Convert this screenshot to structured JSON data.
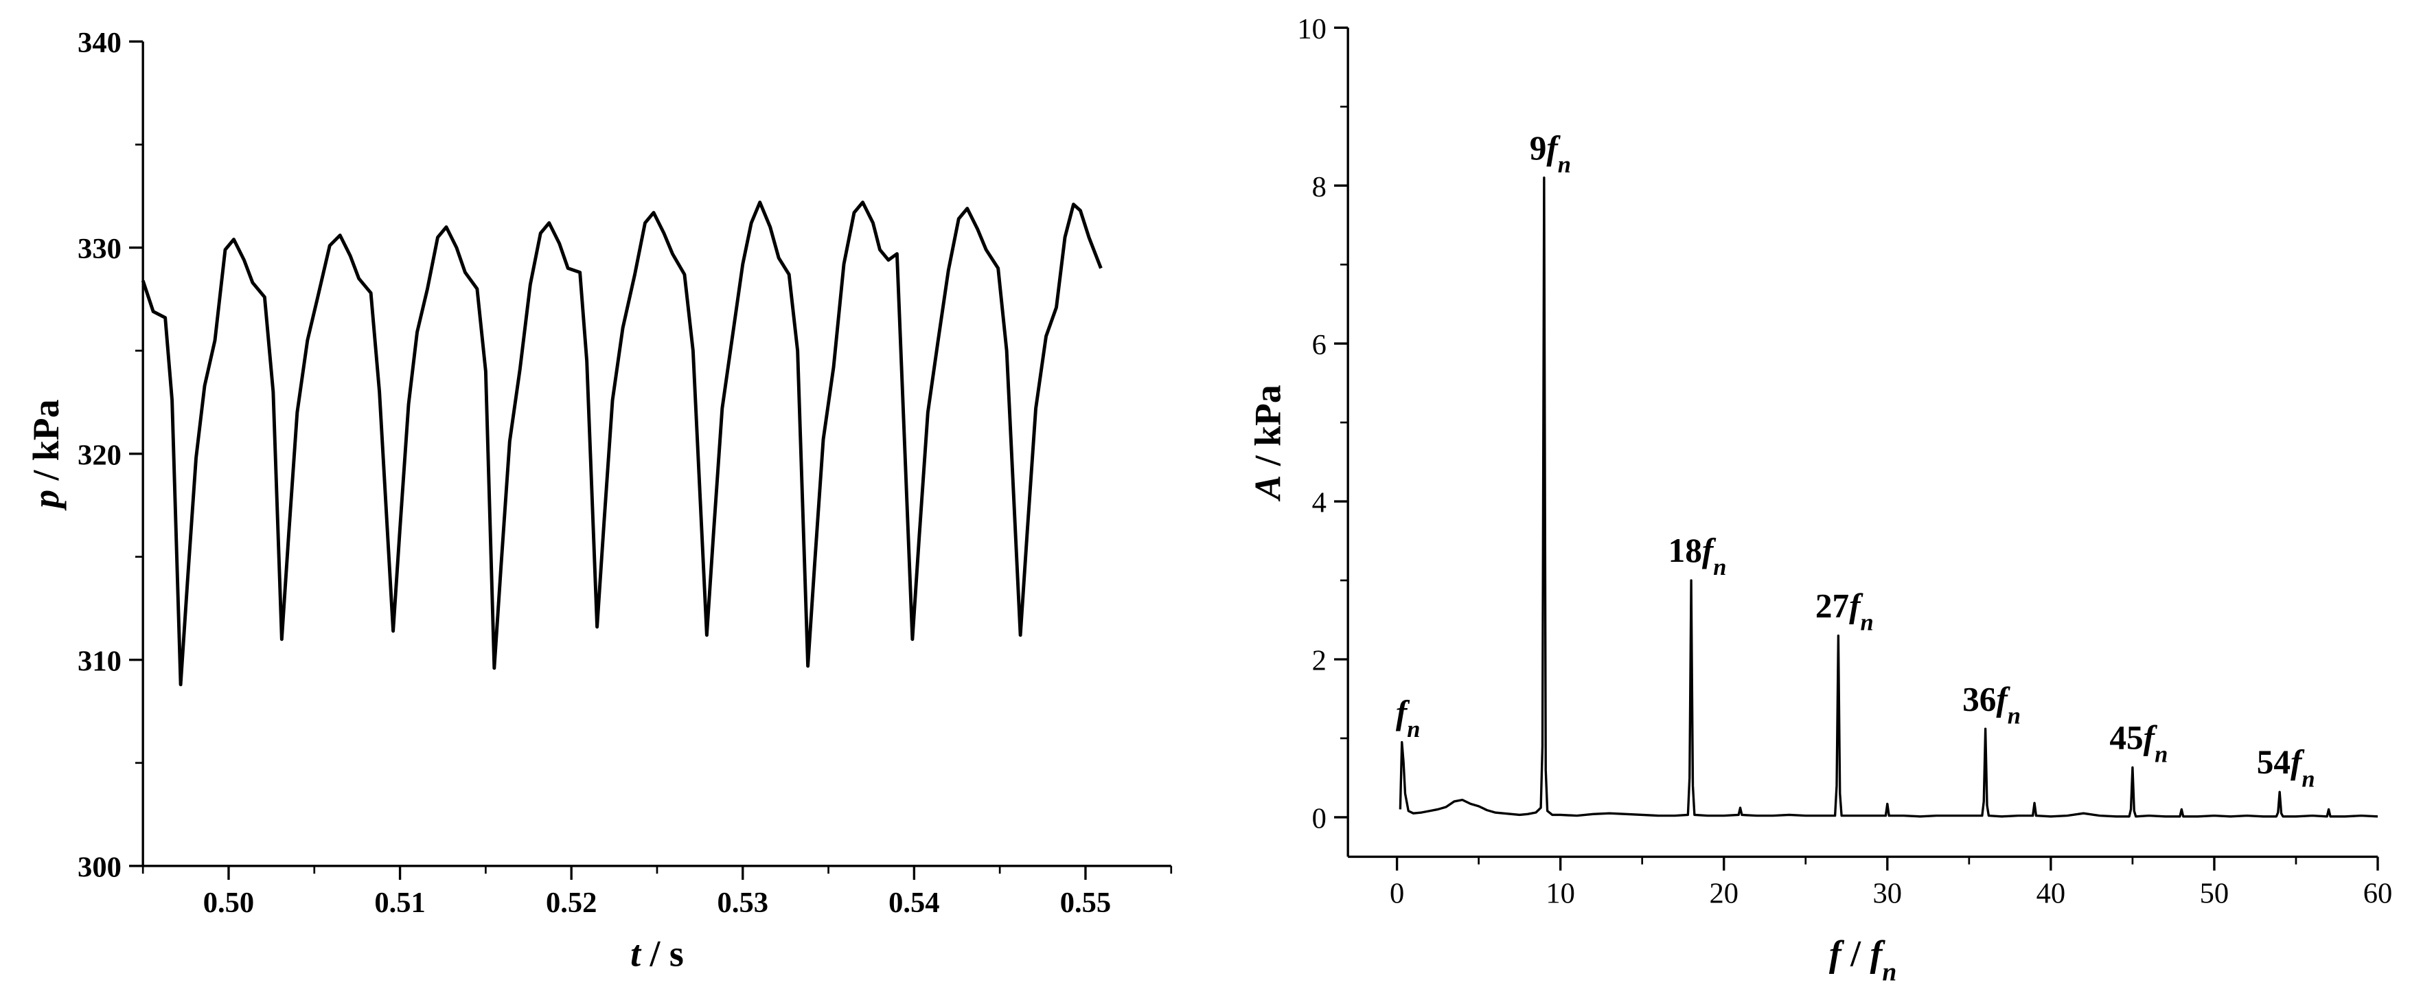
{
  "chart_data": [
    {
      "type": "line",
      "xlabel": [
        {
          "text": "t",
          "style": "italic"
        },
        {
          "text": "/"
        },
        {
          "text": "s"
        }
      ],
      "ylabel": [
        {
          "text": "p",
          "style": "italic"
        },
        {
          "text": "/"
        },
        {
          "text": "kPa"
        }
      ],
      "xlim": [
        0.495,
        0.555
      ],
      "xticks": [
        {
          "value": 0.5,
          "label": "0.50"
        },
        0.51,
        0.52,
        0.53,
        0.54,
        0.55
      ],
      "xminor": [
        0.495,
        0.505,
        0.515,
        0.525,
        0.535,
        0.545,
        0.555
      ],
      "ylim": [
        300,
        340
      ],
      "yticks": [
        300,
        310,
        320,
        330,
        340
      ],
      "yminor": [
        305,
        315,
        325,
        335
      ],
      "bold_ticks": true,
      "series": [
        {
          "color": "#000000",
          "x": [
            0.495,
            0.4956,
            0.4963,
            0.4967,
            0.4972,
            0.4976,
            0.4981,
            0.4986,
            0.4992,
            0.4998,
            0.5003,
            0.5009,
            0.5014,
            0.5021,
            0.5026,
            0.5031,
            0.5035,
            0.504,
            0.5046,
            0.5052,
            0.5059,
            0.5065,
            0.5071,
            0.5076,
            0.5083,
            0.5088,
            0.5096,
            0.51,
            0.5105,
            0.511,
            0.5116,
            0.5122,
            0.5127,
            0.5133,
            0.5138,
            0.5145,
            0.515,
            0.5155,
            0.5159,
            0.5164,
            0.517,
            0.5176,
            0.5182,
            0.5187,
            0.5193,
            0.5198,
            0.5205,
            0.5209,
            0.5215,
            0.5219,
            0.5224,
            0.523,
            0.5237,
            0.5243,
            0.5248,
            0.5254,
            0.5259,
            0.5266,
            0.5271,
            0.5279,
            0.5283,
            0.5288,
            0.5294,
            0.53,
            0.5305,
            0.531,
            0.5316,
            0.5321,
            0.5327,
            0.5332,
            0.5338,
            0.5342,
            0.5347,
            0.5353,
            0.5359,
            0.5365,
            0.537,
            0.5376,
            0.538,
            0.5385,
            0.539,
            0.5399,
            0.5403,
            0.5408,
            0.5414,
            0.542,
            0.5426,
            0.5431,
            0.5437,
            0.5442,
            0.5449,
            0.5454,
            0.5462,
            0.5466,
            0.5471,
            0.5477,
            0.5483,
            0.5488,
            0.5493,
            0.5497,
            0.5502,
            0.5509
          ],
          "values": [
            328.4,
            326.9,
            326.6,
            322.6,
            308.8,
            313.8,
            319.8,
            323.3,
            325.5,
            329.9,
            330.4,
            329.4,
            328.3,
            327.6,
            323.0,
            311.0,
            316,
            322,
            325.5,
            327.6,
            330.1,
            330.6,
            329.6,
            328.5,
            327.8,
            323,
            311.4,
            316.4,
            322.4,
            325.9,
            328,
            330.5,
            331.0,
            330,
            328.8,
            328,
            324,
            309.6,
            314.6,
            320.6,
            324.1,
            328.2,
            330.7,
            331.2,
            330.2,
            329,
            328.8,
            324.5,
            311.6,
            316.6,
            322.6,
            326.1,
            328.7,
            331.2,
            331.7,
            330.7,
            329.7,
            328.7,
            325,
            311.2,
            316.2,
            322.2,
            325.7,
            329.2,
            331.2,
            332.2,
            331,
            329.5,
            328.7,
            325,
            309.7,
            314.7,
            320.7,
            324.2,
            329.2,
            331.7,
            332.2,
            331.2,
            329.9,
            329.4,
            329.7,
            311.0,
            316,
            322,
            325.5,
            328.9,
            331.4,
            331.9,
            330.9,
            329.9,
            329,
            325,
            311.2,
            316.2,
            322.2,
            325.7,
            327.1,
            330.5,
            332.1,
            331.8,
            330.5,
            329.0
          ]
        }
      ]
    },
    {
      "type": "line",
      "xlabel": [
        {
          "text": "f",
          "style": "italic"
        },
        {
          "text": "/"
        },
        {
          "text": "f",
          "style": "italic"
        },
        {
          "text": "n",
          "style": "sub"
        }
      ],
      "ylabel": [
        {
          "text": "A",
          "style": "italic"
        },
        {
          "text": "/"
        },
        {
          "text": "kPa"
        }
      ],
      "xlim": [
        -3,
        60
      ],
      "xticks": [
        0,
        10,
        20,
        30,
        40,
        50,
        60
      ],
      "xminor": [
        5,
        15,
        25,
        35,
        45,
        55
      ],
      "ylim": [
        -0.5,
        10
      ],
      "yticks": [
        0,
        2,
        4,
        6,
        8,
        10
      ],
      "yminor": [
        1,
        3,
        5,
        7,
        9
      ],
      "bold_ticks": false,
      "series": [
        {
          "color": "#000000",
          "x": [
            0.2,
            0.3,
            0.4,
            0.5,
            0.7,
            1,
            1.5,
            2,
            2.5,
            3,
            3.5,
            4,
            4.5,
            5,
            5.5,
            6,
            6.5,
            7,
            7.5,
            8,
            8.5,
            8.8,
            8.9,
            9,
            9.1,
            9.2,
            9.5,
            10,
            11,
            12,
            13,
            14,
            15,
            16,
            17,
            17.8,
            17.9,
            18,
            18.1,
            18.2,
            19,
            20,
            20.9,
            21,
            21.1,
            22,
            23,
            24,
            25,
            26,
            26.8,
            26.9,
            27,
            27.1,
            27.2,
            28,
            29,
            29.9,
            30,
            30.1,
            31,
            32,
            33,
            34,
            35,
            35.8,
            35.9,
            36,
            36.1,
            36.2,
            37,
            38,
            38.9,
            39,
            39.1,
            40,
            41,
            42,
            43,
            44,
            44.8,
            44.9,
            45,
            45.1,
            45.2,
            46,
            47,
            47.9,
            48,
            48.1,
            49,
            50,
            51,
            52,
            53,
            53.8,
            53.9,
            54,
            54.1,
            54.2,
            55,
            56,
            56.9,
            57,
            57.1,
            58,
            59,
            60
          ],
          "values": [
            0.1,
            0.95,
            0.7,
            0.3,
            0.08,
            0.05,
            0.06,
            0.08,
            0.1,
            0.13,
            0.2,
            0.22,
            0.17,
            0.14,
            0.09,
            0.06,
            0.05,
            0.04,
            0.03,
            0.04,
            0.06,
            0.12,
            0.9,
            8.1,
            0.6,
            0.08,
            0.03,
            0.03,
            0.02,
            0.04,
            0.05,
            0.04,
            0.03,
            0.02,
            0.02,
            0.03,
            0.5,
            3.0,
            0.4,
            0.03,
            0.02,
            0.02,
            0.03,
            0.12,
            0.03,
            0.02,
            0.02,
            0.03,
            0.02,
            0.02,
            0.02,
            0.4,
            2.3,
            0.3,
            0.02,
            0.02,
            0.02,
            0.02,
            0.17,
            0.02,
            0.02,
            0.01,
            0.02,
            0.02,
            0.02,
            0.02,
            0.2,
            1.12,
            0.15,
            0.02,
            0.01,
            0.02,
            0.02,
            0.18,
            0.02,
            0.01,
            0.02,
            0.05,
            0.02,
            0.01,
            0.01,
            0.1,
            0.63,
            0.08,
            0.01,
            0.02,
            0.01,
            0.01,
            0.1,
            0.01,
            0.01,
            0.02,
            0.01,
            0.02,
            0.01,
            0.01,
            0.06,
            0.32,
            0.05,
            0.01,
            0.01,
            0.02,
            0.01,
            0.1,
            0.01,
            0.01,
            0.02,
            0.01
          ]
        }
      ],
      "annotations": [
        {
          "symbol": "f",
          "subscript": "n",
          "x": 0.3,
          "y": 0.95
        },
        {
          "number": "9",
          "symbol": "f",
          "subscript": "n",
          "x": 9,
          "y": 8.1
        },
        {
          "number": "18",
          "symbol": "f",
          "subscript": "n",
          "x": 18,
          "y": 3.0
        },
        {
          "number": "27",
          "symbol": "f",
          "subscript": "n",
          "x": 27,
          "y": 2.3
        },
        {
          "number": "36",
          "symbol": "f",
          "subscript": "n",
          "x": 36,
          "y": 1.12
        },
        {
          "number": "45",
          "symbol": "f",
          "subscript": "n",
          "x": 45,
          "y": 0.63
        },
        {
          "number": "54",
          "symbol": "f",
          "subscript": "n",
          "x": 54,
          "y": 0.32
        }
      ]
    }
  ]
}
